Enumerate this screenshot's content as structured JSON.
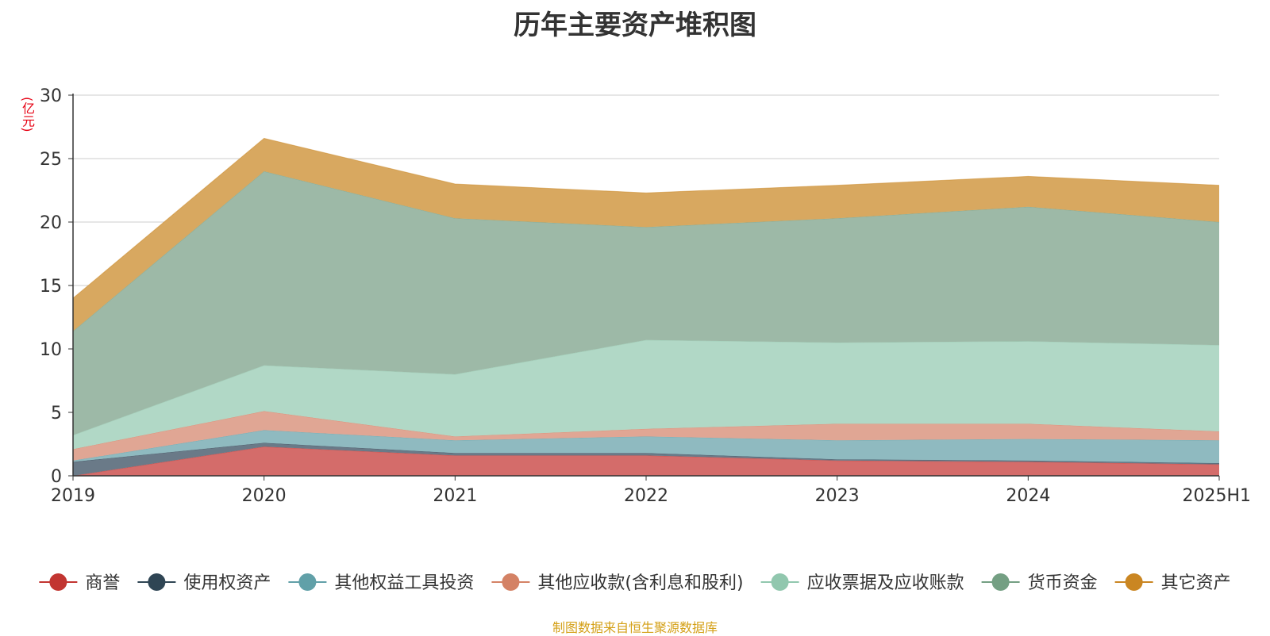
{
  "chart_data": {
    "type": "area",
    "stacked": true,
    "title": "历年主要资产堆积图",
    "unit_label": "(亿元)",
    "x": [
      "2019",
      "2020",
      "2021",
      "2022",
      "2023",
      "2024",
      "2025H1"
    ],
    "ylim": [
      0,
      30
    ],
    "yticks": [
      0,
      5,
      10,
      15,
      20,
      25,
      30
    ],
    "grid": true,
    "legend_position": "bottom",
    "series": [
      {
        "name": "商誉",
        "color": "#c23531",
        "area_color": "#d46c6a",
        "values": [
          0.0,
          2.3,
          1.6,
          1.6,
          1.2,
          1.1,
          0.9
        ]
      },
      {
        "name": "使用权资产",
        "color": "#2f4554",
        "area_color": "#6a7a88",
        "values": [
          1.1,
          0.3,
          0.2,
          0.2,
          0.1,
          0.1,
          0.1
        ]
      },
      {
        "name": "其他权益工具投资",
        "color": "#61a0a8",
        "area_color": "#8fbac0",
        "values": [
          0.1,
          1.0,
          1.0,
          1.3,
          1.5,
          1.7,
          1.8
        ]
      },
      {
        "name": "其他应收款(含利息和股利)",
        "color": "#d48265",
        "area_color": "#e0a694",
        "values": [
          0.9,
          1.5,
          0.3,
          0.6,
          1.3,
          1.2,
          0.7
        ]
      },
      {
        "name": "应收票据及应收账款",
        "color": "#91c7ae",
        "area_color": "#b1d8c6",
        "values": [
          1.1,
          3.6,
          4.9,
          7.0,
          6.4,
          6.5,
          6.8
        ]
      },
      {
        "name": "货币资金",
        "color": "#749f83",
        "area_color": "#9db9a7",
        "values": [
          8.2,
          15.3,
          12.3,
          8.9,
          9.8,
          10.6,
          9.7
        ]
      },
      {
        "name": "其它资产",
        "color": "#ca8622",
        "area_color": "#d8a860",
        "values": [
          2.6,
          2.6,
          2.7,
          2.7,
          2.6,
          2.4,
          2.9
        ]
      }
    ]
  },
  "footer": {
    "source": "制图数据来自恒生聚源数据库"
  }
}
